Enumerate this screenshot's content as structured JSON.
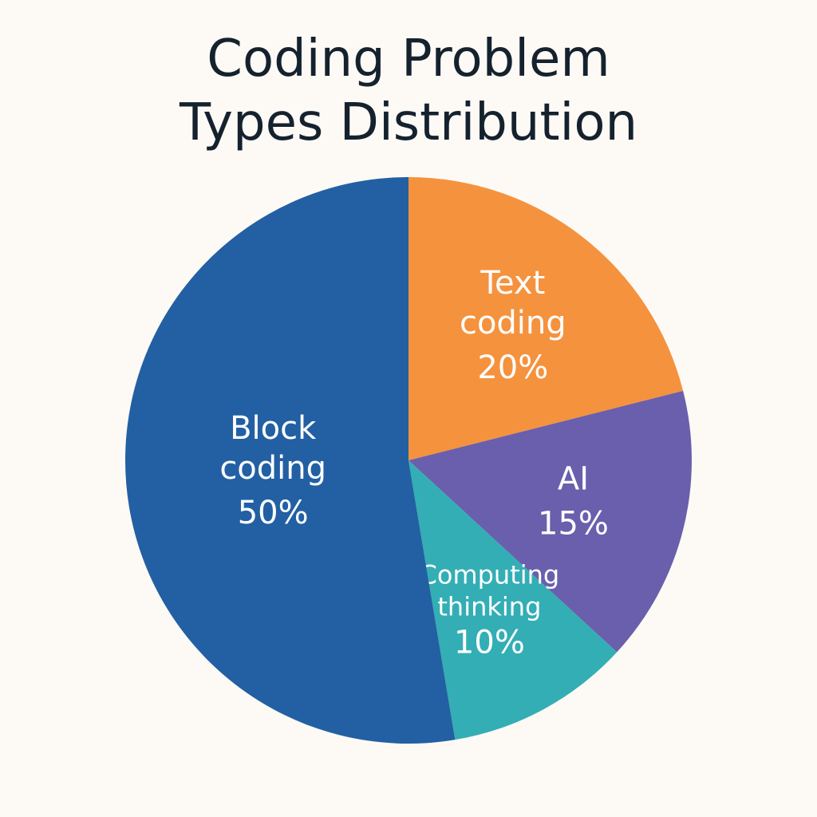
{
  "chart_data": {
    "type": "pie",
    "title": "Coding Problem Types Distribution",
    "categories": [
      "Text coding",
      "AI",
      "Computing thinking",
      "Block coding"
    ],
    "values": [
      20,
      15,
      10,
      50
    ],
    "value_labels": [
      "20%",
      "15%",
      "10%",
      "50%"
    ],
    "colors": [
      "#f5923e",
      "#6a5fac",
      "#33aeb5",
      "#2260a3"
    ]
  }
}
